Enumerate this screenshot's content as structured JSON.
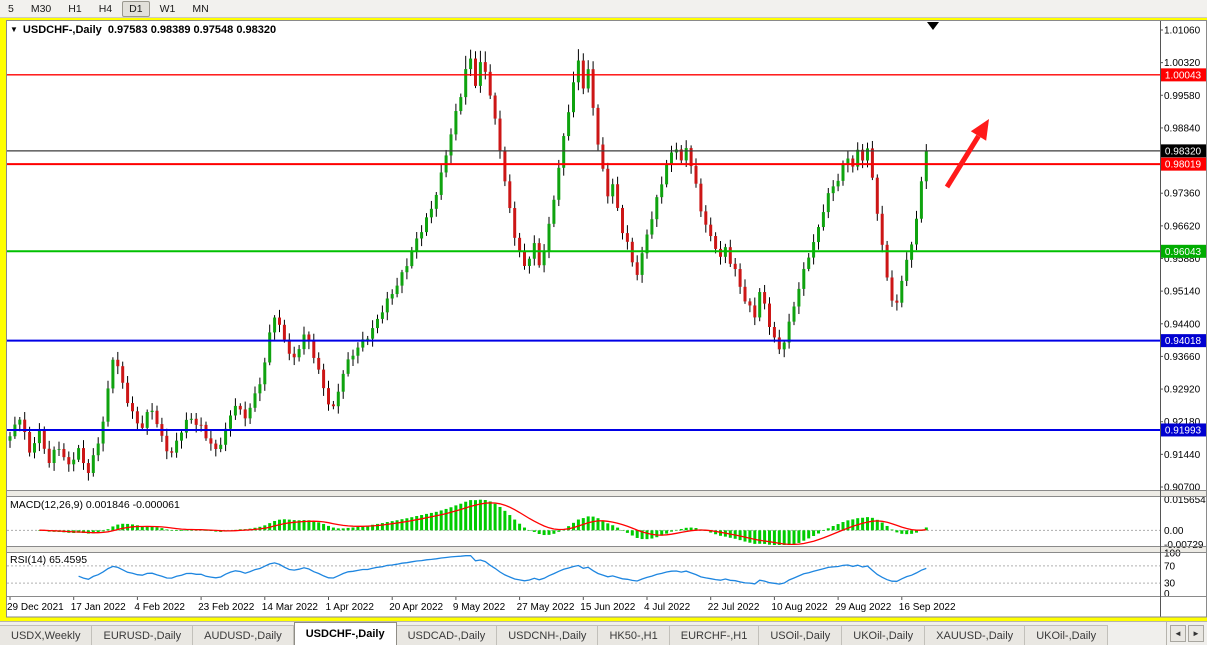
{
  "toolbar": {
    "timeframes": [
      "5",
      "M30",
      "H1",
      "H4",
      "D1",
      "W1",
      "MN"
    ],
    "active": "D1"
  },
  "chart": {
    "collapse_icon": "▼",
    "header": "USDCHF-,Daily  0.97583 0.98389 0.97548 0.98320"
  },
  "indicators": {
    "macd": {
      "label": "MACD(12,26,9) 0.001846 -0.000061",
      "axis_labels": [
        "0.015654",
        "0.00",
        "-0.00729"
      ],
      "axis_values": [
        0.015654,
        0,
        -0.00729
      ]
    },
    "rsi": {
      "label": "RSI(14) 65.4595",
      "axis_values": [
        100,
        70,
        30,
        0
      ],
      "levels": [
        70,
        30
      ]
    }
  },
  "x_axis": {
    "bars_per_label": 13,
    "labels": [
      "29 Dec 2021",
      "17 Jan 2022",
      "4 Feb 2022",
      "23 Feb 2022",
      "14 Mar 2022",
      "1 Apr 2022",
      "20 Apr 2022",
      "9 May 2022",
      "27 May 2022",
      "15 Jun 2022",
      "4 Jul 2022",
      "22 Jul 2022",
      "10 Aug 2022",
      "29 Aug 2022",
      "16 Sep 2022"
    ]
  },
  "tabs": {
    "active_index": 3,
    "nav_left": "◄",
    "nav_right": "►",
    "items": [
      "USDX,Weekly",
      "EURUSD-,Daily",
      "AUDUSD-,Daily",
      "USDCHF-,Daily",
      "USDCAD-,Daily",
      "USDCNH-,Daily",
      "HK50-,H1",
      "EURCHF-,H1",
      "USOil-,Daily",
      "UKOil-,Daily",
      "XAUUSD-,Daily",
      "UKOil-,Daily"
    ]
  },
  "chart_data": {
    "type": "candlestick",
    "title": "USDCHF-,Daily",
    "bars": 188,
    "ohlc_current": {
      "open": 0.97583,
      "high": 0.98389,
      "low": 0.97548,
      "close": 0.9832
    },
    "y_range": [
      0.9066,
      1.0124
    ],
    "price_ticks": [
      1.0106,
      1.0032,
      0.9958,
      0.9884,
      0.9736,
      0.9662,
      0.9588,
      0.9514,
      0.944,
      0.9366,
      0.9292,
      0.9218,
      0.9144,
      0.907
    ],
    "levels": [
      {
        "price": 1.00043,
        "color": "#FF0000",
        "bg": "#FF0000",
        "width": 1.4
      },
      {
        "price": 0.9832,
        "color": "#3C3C3C",
        "bg": "#000000",
        "width": 1.2,
        "role": "current-price"
      },
      {
        "price": 0.98019,
        "color": "#FF0000",
        "bg": "#FF0000",
        "width": 2
      },
      {
        "price": 0.96043,
        "color": "#00C000",
        "bg": "#00AC00",
        "width": 2
      },
      {
        "price": 0.94018,
        "color": "#0000E6",
        "bg": "#0000D0",
        "width": 2
      },
      {
        "price": 0.91993,
        "color": "#0000E6",
        "bg": "#0000D0",
        "width": 2
      }
    ],
    "candle_up_color": "#0FA30F",
    "candle_down_color": "#CC1616",
    "macd_hist_color": "#00CC00",
    "macd_signal_color": "#FF0000",
    "macd_scale": [
      0.016,
      -0.0075
    ],
    "rsi_color": "#1E86E0",
    "annotation_arrow": {
      "color": "#FF1A1A",
      "from": [
        947,
        187
      ],
      "to": [
        989,
        119
      ]
    },
    "marker_triangle_x": 933,
    "close_anchors": [
      [
        0,
        0.9185
      ],
      [
        1,
        0.9205
      ],
      [
        2,
        0.923
      ],
      [
        3,
        0.9195
      ],
      [
        4,
        0.915
      ],
      [
        5,
        0.9175
      ],
      [
        6,
        0.919
      ],
      [
        7,
        0.9155
      ],
      [
        8,
        0.9125
      ],
      [
        9,
        0.915
      ],
      [
        10,
        0.9165
      ],
      [
        11,
        0.914
      ],
      [
        12,
        0.9118
      ],
      [
        13,
        0.9135
      ],
      [
        14,
        0.915
      ],
      [
        15,
        0.9122
      ],
      [
        16,
        0.9108
      ],
      [
        17,
        0.914
      ],
      [
        18,
        0.9175
      ],
      [
        19,
        0.922
      ],
      [
        20,
        0.9285
      ],
      [
        21,
        0.936
      ],
      [
        22,
        0.934
      ],
      [
        23,
        0.9305
      ],
      [
        24,
        0.927
      ],
      [
        25,
        0.924
      ],
      [
        26,
        0.9215
      ],
      [
        27,
        0.9205
      ],
      [
        28,
        0.923
      ],
      [
        29,
        0.9245
      ],
      [
        30,
        0.9215
      ],
      [
        31,
        0.9185
      ],
      [
        32,
        0.916
      ],
      [
        33,
        0.9145
      ],
      [
        34,
        0.917
      ],
      [
        35,
        0.9195
      ],
      [
        36,
        0.9215
      ],
      [
        37,
        0.9228
      ],
      [
        38,
        0.9218
      ],
      [
        39,
        0.9208
      ],
      [
        40,
        0.9185
      ],
      [
        41,
        0.9165
      ],
      [
        42,
        0.9148
      ],
      [
        43,
        0.917
      ],
      [
        44,
        0.92
      ],
      [
        45,
        0.9235
      ],
      [
        46,
        0.9262
      ],
      [
        47,
        0.924
      ],
      [
        48,
        0.9225
      ],
      [
        49,
        0.9248
      ],
      [
        50,
        0.9275
      ],
      [
        51,
        0.931
      ],
      [
        52,
        0.9355
      ],
      [
        53,
        0.942
      ],
      [
        54,
        0.946
      ],
      [
        55,
        0.943
      ],
      [
        56,
        0.94
      ],
      [
        57,
        0.9375
      ],
      [
        58,
        0.936
      ],
      [
        59,
        0.939
      ],
      [
        60,
        0.942
      ],
      [
        61,
        0.9395
      ],
      [
        62,
        0.9365
      ],
      [
        63,
        0.933
      ],
      [
        64,
        0.929
      ],
      [
        65,
        0.9265
      ],
      [
        66,
        0.9252
      ],
      [
        67,
        0.929
      ],
      [
        68,
        0.933
      ],
      [
        69,
        0.935
      ],
      [
        70,
        0.9368
      ],
      [
        72,
        0.9402
      ],
      [
        74,
        0.943
      ],
      [
        76,
        0.9468
      ],
      [
        78,
        0.9508
      ],
      [
        80,
        0.9555
      ],
      [
        82,
        0.9602
      ],
      [
        84,
        0.965
      ],
      [
        86,
        0.9702
      ],
      [
        88,
        0.978
      ],
      [
        90,
        0.9868
      ],
      [
        92,
        0.9958
      ],
      [
        93,
        1.0018
      ],
      [
        94,
        1.0042
      ],
      [
        95,
        0.9988
      ],
      [
        96,
        1.0028
      ],
      [
        97,
        1.0008
      ],
      [
        98,
        0.9958
      ],
      [
        99,
        0.9898
      ],
      [
        100,
        0.9838
      ],
      [
        101,
        0.9768
      ],
      [
        102,
        0.97
      ],
      [
        103,
        0.964
      ],
      [
        104,
        0.9598
      ],
      [
        105,
        0.9565
      ],
      [
        106,
        0.9592
      ],
      [
        107,
        0.962
      ],
      [
        108,
        0.9578
      ],
      [
        109,
        0.9612
      ],
      [
        110,
        0.966
      ],
      [
        111,
        0.9722
      ],
      [
        112,
        0.979
      ],
      [
        113,
        0.986
      ],
      [
        114,
        0.9928
      ],
      [
        115,
        0.9988
      ],
      [
        116,
        1.0038
      ],
      [
        117,
        0.9978
      ],
      [
        118,
        1.0008
      ],
      [
        119,
        0.9928
      ],
      [
        120,
        0.9848
      ],
      [
        121,
        0.9788
      ],
      [
        122,
        0.9738
      ],
      [
        123,
        0.9758
      ],
      [
        124,
        0.9698
      ],
      [
        125,
        0.9648
      ],
      [
        126,
        0.9618
      ],
      [
        127,
        0.9578
      ],
      [
        128,
        0.9558
      ],
      [
        129,
        0.9598
      ],
      [
        130,
        0.9648
      ],
      [
        131,
        0.9678
      ],
      [
        132,
        0.9718
      ],
      [
        133,
        0.9758
      ],
      [
        134,
        0.9798
      ],
      [
        135,
        0.9828
      ],
      [
        136,
        0.9845
      ],
      [
        137,
        0.9808
      ],
      [
        138,
        0.9838
      ],
      [
        139,
        0.9798
      ],
      [
        140,
        0.9748
      ],
      [
        141,
        0.9698
      ],
      [
        142,
        0.9668
      ],
      [
        143,
        0.9638
      ],
      [
        144,
        0.9618
      ],
      [
        145,
        0.9588
      ],
      [
        146,
        0.9608
      ],
      [
        147,
        0.9578
      ],
      [
        148,
        0.9558
      ],
      [
        149,
        0.9528
      ],
      [
        150,
        0.9498
      ],
      [
        151,
        0.9478
      ],
      [
        152,
        0.9458
      ],
      [
        153,
        0.9508
      ],
      [
        154,
        0.9478
      ],
      [
        155,
        0.9438
      ],
      [
        156,
        0.9408
      ],
      [
        157,
        0.9385
      ],
      [
        158,
        0.9405
      ],
      [
        159,
        0.9438
      ],
      [
        160,
        0.9478
      ],
      [
        161,
        0.9518
      ],
      [
        162,
        0.9558
      ],
      [
        163,
        0.9598
      ],
      [
        164,
        0.9628
      ],
      [
        165,
        0.9658
      ],
      [
        166,
        0.9698
      ],
      [
        167,
        0.9728
      ],
      [
        168,
        0.9748
      ],
      [
        169,
        0.9768
      ],
      [
        170,
        0.9798
      ],
      [
        171,
        0.9822
      ],
      [
        172,
        0.98
      ],
      [
        173,
        0.9828
      ],
      [
        174,
        0.9812
      ],
      [
        175,
        0.9832
      ],
      [
        176,
        0.9768
      ],
      [
        177,
        0.9698
      ],
      [
        178,
        0.9618
      ],
      [
        179,
        0.9548
      ],
      [
        180,
        0.9495
      ],
      [
        181,
        0.9478
      ],
      [
        182,
        0.9538
      ],
      [
        183,
        0.9585
      ],
      [
        184,
        0.9618
      ],
      [
        185,
        0.9688
      ],
      [
        186,
        0.9762
      ],
      [
        187,
        0.9832
      ]
    ]
  }
}
